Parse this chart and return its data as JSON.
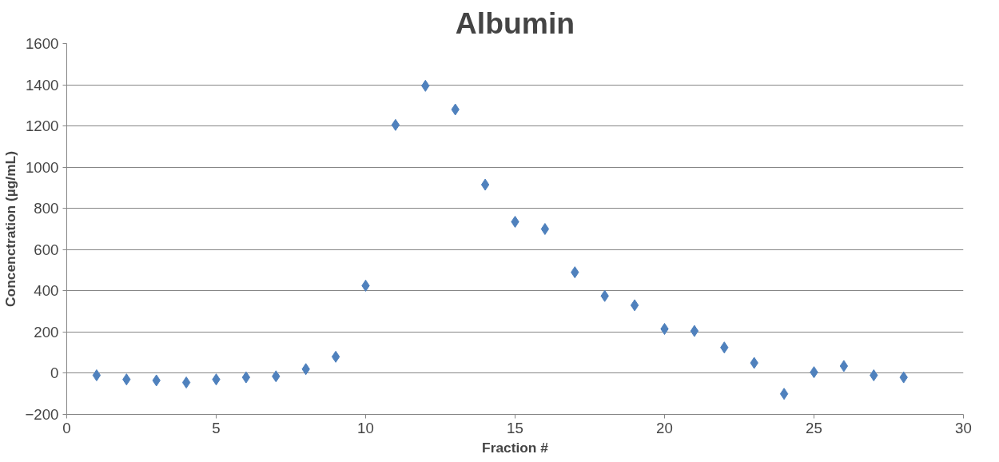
{
  "chart_data": {
    "type": "scatter",
    "title": "Albumin",
    "xlabel": "Fraction #",
    "ylabel": "Concenctration (µg/mL)",
    "x": [
      1,
      2,
      3,
      4,
      5,
      6,
      7,
      8,
      9,
      10,
      11,
      12,
      13,
      14,
      15,
      16,
      17,
      18,
      19,
      20,
      21,
      22,
      23,
      24,
      25,
      26,
      27,
      28
    ],
    "series": [
      {
        "color": "#4f81bd",
        "values": [
          -10,
          -30,
          -35,
          -45,
          -30,
          -20,
          -15,
          20,
          80,
          425,
          1205,
          1395,
          1280,
          915,
          735,
          700,
          490,
          375,
          330,
          215,
          205,
          125,
          50,
          -100,
          5,
          35,
          -10,
          -20
        ]
      }
    ],
    "xlim": [
      0,
      30
    ],
    "xticks": [
      0,
      5,
      10,
      15,
      20,
      25,
      30
    ],
    "ylim": [
      -200,
      1600
    ],
    "yticks": [
      -200,
      0,
      200,
      400,
      600,
      800,
      1000,
      1200,
      1400,
      1600
    ],
    "grid": "y",
    "marker": "diamond"
  }
}
